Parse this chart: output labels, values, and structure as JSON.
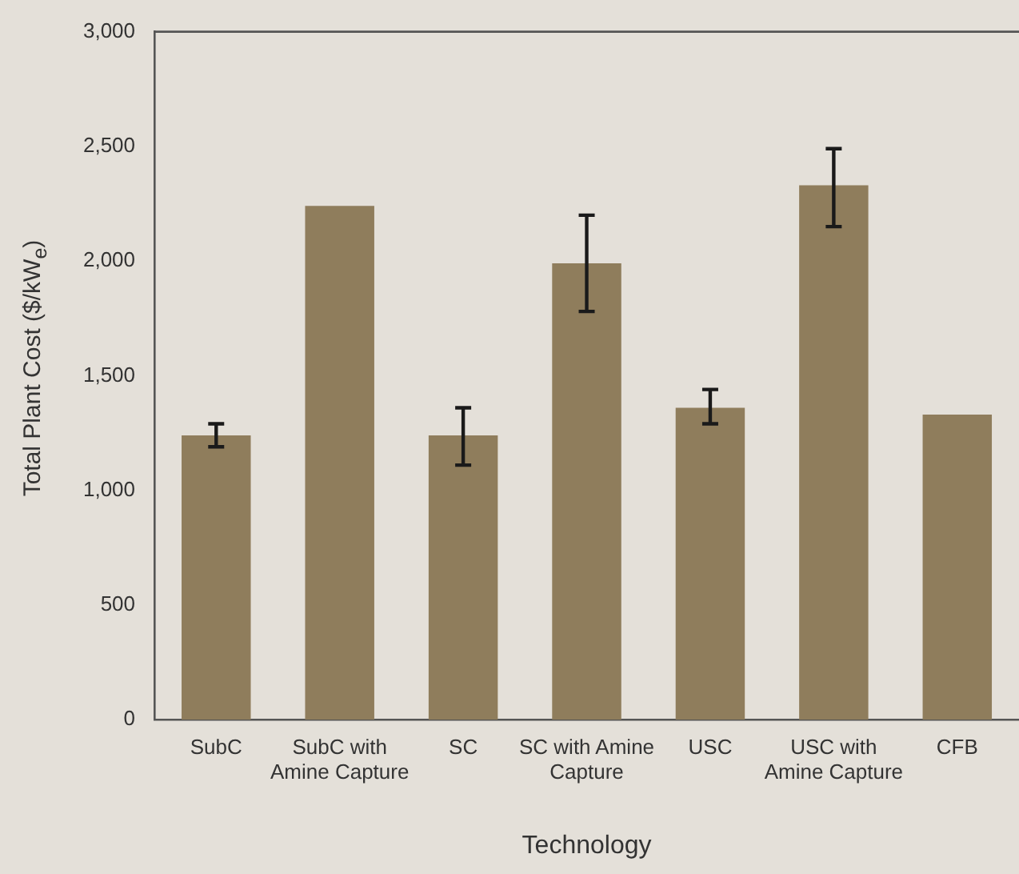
{
  "chart_data": {
    "type": "bar",
    "xlabel": "Technology",
    "ylabel": "Total Plant Cost ($/kW$_{e}$)",
    "categories": [
      "SubC",
      "SubC with Amine Capture",
      "SC",
      "SC with Amine Capture",
      "USC",
      "USC with Amine Capture",
      "CFB"
    ],
    "values": [
      1240,
      2240,
      1240,
      1990,
      1360,
      2330,
      1330
    ],
    "errors": [
      [
        1190,
        1290
      ],
      null,
      [
        1110,
        1360
      ],
      [
        1780,
        2200
      ],
      [
        1290,
        1440
      ],
      [
        2150,
        2490
      ],
      null
    ],
    "color": "#8f7d5c",
    "ylim": [
      0,
      3000
    ],
    "yticks": [
      {
        "value": 0,
        "label": "0"
      },
      {
        "value": 500,
        "label": "500"
      },
      {
        "value": 1000,
        "label": "1,000"
      },
      {
        "value": 1500,
        "label": "1,500"
      },
      {
        "value": 2000,
        "label": "2,000"
      },
      {
        "value": 2500,
        "label": "2,500"
      },
      {
        "value": 3000,
        "label": "3,000"
      }
    ],
    "grid": false,
    "legend": false
  }
}
